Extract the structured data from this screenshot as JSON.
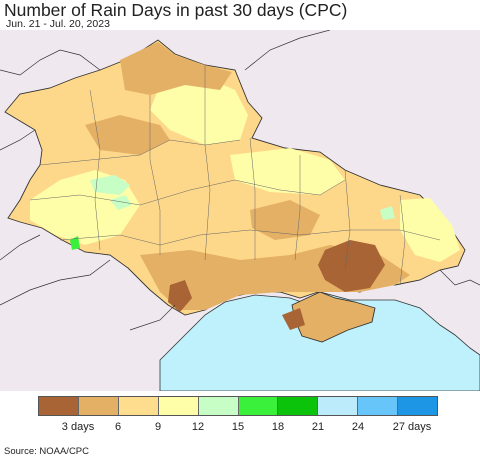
{
  "title": "Number of Rain Days in past 30 days (CPC)",
  "subtitle": "Jun. 21 - Jul. 20, 2023",
  "source": "Source: NOAA/CPC",
  "legend": {
    "colors": [
      "#a86434",
      "#e3b066",
      "#fedd8e",
      "#fefea8",
      "#c6fec6",
      "#3af03a",
      "#0ac30a",
      "#bcecfc",
      "#68c5fa",
      "#1e96e6"
    ],
    "tick_labels": [
      "3 days",
      "6",
      "9",
      "12",
      "15",
      "18",
      "21",
      "24",
      "27 days"
    ]
  },
  "map_colors": {
    "land_outside": "#efe9ef",
    "sea": "#bff1fc",
    "border": "#333333"
  }
}
